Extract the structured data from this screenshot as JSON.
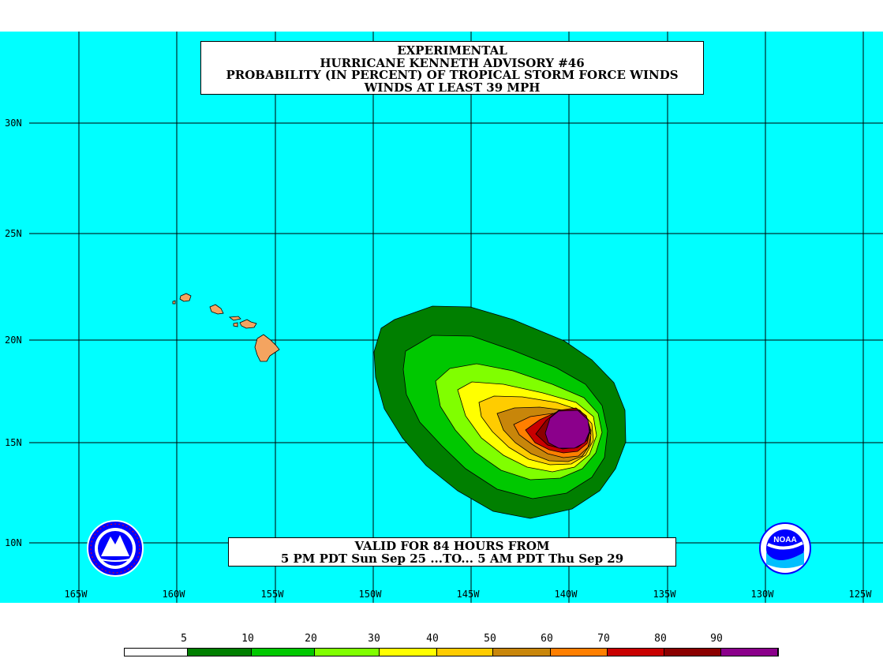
{
  "title": {
    "line1": "EXPERIMENTAL",
    "line2": "HURRICANE KENNETH ADVISORY #46",
    "line3": "PROBABILITY (IN PERCENT) OF TROPICAL STORM FORCE WINDS",
    "line4": "WINDS AT LEAST 39 MPH"
  },
  "valid": {
    "line1": "VALID FOR 84 HOURS FROM",
    "line2": "5 PM PDT Sun Sep 25 ...TO... 5 AM PDT Thu Sep 29"
  },
  "axes": {
    "lon_labels": [
      "165W",
      "160W",
      "155W",
      "150W",
      "145W",
      "140W",
      "135W",
      "130W",
      "125W"
    ],
    "lat_labels": [
      "30N",
      "25N",
      "20N",
      "15N",
      "10N"
    ]
  },
  "legend": {
    "labels": [
      "5",
      "10",
      "20",
      "30",
      "40",
      "50",
      "60",
      "70",
      "80",
      "90"
    ],
    "colors": [
      "#ffffff",
      "#007f00",
      "#00c800",
      "#80ff00",
      "#ffff00",
      "#ffcc00",
      "#c8860a",
      "#ff7f00",
      "#c80000",
      "#8b0000",
      "#8b008b"
    ]
  },
  "colors": {
    "ocean": "#00ffff",
    "land": "#f4a460",
    "grid": "#000000"
  },
  "logos": {
    "left": "NATIONAL WEATHER SERVICE",
    "right": "NOAA"
  }
}
